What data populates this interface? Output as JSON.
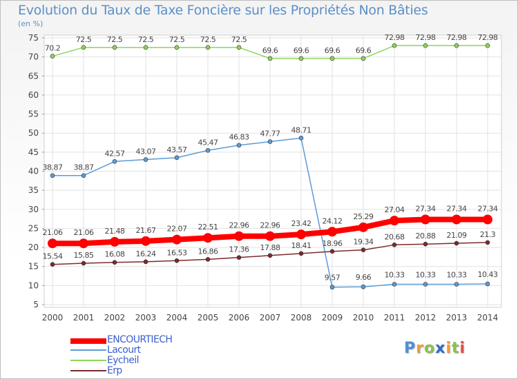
{
  "chart_data": {
    "type": "line",
    "title": "Evolution du Taux de Taxe Foncière sur les Propriétés Non Bâties",
    "ylabel": "(en %)",
    "xlabel": "",
    "categories": [
      "2000",
      "2001",
      "2002",
      "2003",
      "2004",
      "2005",
      "2006",
      "2007",
      "2008",
      "2009",
      "2010",
      "2011",
      "2012",
      "2013",
      "2014"
    ],
    "ylim": [
      5,
      75
    ],
    "yticks": [
      5,
      10,
      15,
      20,
      25,
      30,
      35,
      40,
      45,
      50,
      55,
      60,
      65,
      70,
      75
    ],
    "grid": true,
    "legend_position": "bottom-left",
    "series": [
      {
        "name": "ENCOURTIECH",
        "color": "#ff0000",
        "values": [
          21.06,
          21.06,
          21.48,
          21.67,
          22.07,
          22.51,
          22.96,
          22.96,
          23.42,
          24.12,
          25.29,
          27.04,
          27.34,
          27.34,
          27.34
        ],
        "labels": [
          "21.06",
          "21.06",
          "21.48",
          "21.67",
          "22.07",
          "22.51",
          "22.96",
          "22.96",
          "23.42",
          "24.12",
          "25.29",
          "27.04",
          "27.34",
          "27.34",
          "27.34"
        ]
      },
      {
        "name": "Lacourt",
        "color": "#5b9bd5",
        "values": [
          38.87,
          38.87,
          42.57,
          43.07,
          43.57,
          45.47,
          46.83,
          47.77,
          48.71,
          9.57,
          9.66,
          10.33,
          10.33,
          10.33,
          10.43
        ],
        "labels": [
          "38.87",
          "38.87",
          "42.57",
          "43.07",
          "43.57",
          "45.47",
          "46.83",
          "47.77",
          "48.71",
          "9.57",
          "9.66",
          "10.33",
          "10.33",
          "10.33",
          "10.43"
        ]
      },
      {
        "name": "Eycheil",
        "color": "#8fd45a",
        "values": [
          70.2,
          72.5,
          72.5,
          72.5,
          72.5,
          72.5,
          72.5,
          69.6,
          69.6,
          69.6,
          69.6,
          72.98,
          72.98,
          72.98,
          72.98
        ],
        "labels": [
          "70.2",
          "72.5",
          "72.5",
          "72.5",
          "72.5",
          "72.5",
          "72.5",
          "69.6",
          "69.6",
          "69.6",
          "69.6",
          "72.98",
          "72.98",
          "72.98",
          "72.98"
        ]
      },
      {
        "name": "Erp",
        "color": "#7b2a2a",
        "values": [
          15.54,
          15.85,
          16.08,
          16.24,
          16.53,
          16.86,
          17.36,
          17.88,
          18.41,
          18.96,
          19.34,
          20.68,
          20.88,
          21.09,
          21.3
        ],
        "labels": [
          "15.54",
          "15.85",
          "16.08",
          "16.24",
          "16.53",
          "16.86",
          "17.36",
          "17.88",
          "18.41",
          "18.96",
          "19.34",
          "20.68",
          "20.88",
          "21.09",
          "21.3"
        ]
      }
    ]
  },
  "legend": {
    "items": [
      {
        "name": "ENCOURTIECH",
        "color": "#ff0000",
        "text_color": "#3a5fcd"
      },
      {
        "name": "Lacourt",
        "color": "#5b9bd5",
        "text_color": "#3a5fcd"
      },
      {
        "name": "Eycheil",
        "color": "#8fd45a",
        "text_color": "#3a5fcd"
      },
      {
        "name": "Erp",
        "color": "#7b2a2a",
        "text_color": "#3a5fcd"
      }
    ]
  },
  "logo": {
    "letters": [
      "P",
      "r",
      "o",
      "x",
      "i",
      "t",
      "i"
    ],
    "colors": [
      "#4f8fd8",
      "#f0a030",
      "#8bc34a",
      "#2a6fc9",
      "#f0a030",
      "#8bc34a",
      "#e05050"
    ]
  }
}
